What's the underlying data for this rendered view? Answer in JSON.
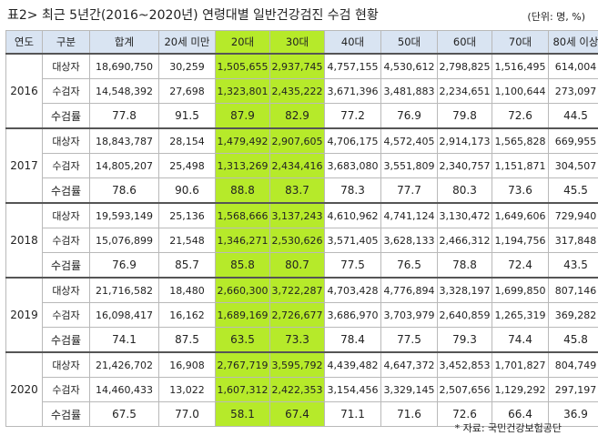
{
  "title": "표2> 최근 5년간(2016~2020년) 연령대별 일반건강검진 수검 현황",
  "unit": "(단위: 명, %)",
  "header": [
    "연도",
    "구분",
    "합계",
    "20세 미만",
    "20대",
    "30대",
    "40대",
    "50대",
    "60대",
    "70대",
    "80세 이상"
  ],
  "groups": [
    {
      "year": "2016",
      "rows": [
        {
          "label": "대상자",
          "cells": [
            "18,690,750",
            "30,259",
            "1,505,655",
            "2,937,745",
            "4,757,155",
            "4,530,612",
            "2,798,825",
            "1,516,495",
            "614,004"
          ]
        },
        {
          "label": "수검자",
          "cells": [
            "14,548,392",
            "27,698",
            "1,323,801",
            "2,435,222",
            "3,671,396",
            "3,481,883",
            "2,234,651",
            "1,100,644",
            "273,097"
          ]
        },
        {
          "label": "수검률",
          "cells": [
            "77.8",
            "91.5",
            "87.9",
            "82.9",
            "77.2",
            "76.9",
            "79.8",
            "72.6",
            "44.5"
          ]
        }
      ]
    },
    {
      "year": "2017",
      "rows": [
        {
          "label": "대상자",
          "cells": [
            "18,843,787",
            "28,154",
            "1,479,492",
            "2,907,605",
            "4,706,175",
            "4,572,405",
            "2,914,173",
            "1,565,828",
            "669,955"
          ]
        },
        {
          "label": "수검자",
          "cells": [
            "14,805,207",
            "25,498",
            "1,313,269",
            "2,434,416",
            "3,683,080",
            "3,551,809",
            "2,340,757",
            "1,151,871",
            "304,507"
          ]
        },
        {
          "label": "수검률",
          "cells": [
            "78.6",
            "90.6",
            "88.8",
            "83.7",
            "78.3",
            "77.7",
            "80.3",
            "73.6",
            "45.5"
          ]
        }
      ]
    },
    {
      "year": "2018",
      "rows": [
        {
          "label": "대상자",
          "cells": [
            "19,593,149",
            "25,136",
            "1,568,666",
            "3,137,243",
            "4,610,962",
            "4,741,124",
            "3,130,472",
            "1,649,606",
            "729,940"
          ]
        },
        {
          "label": "수검자",
          "cells": [
            "15,076,899",
            "21,548",
            "1,346,271",
            "2,530,626",
            "3,571,405",
            "3,628,133",
            "2,466,312",
            "1,194,756",
            "317,848"
          ]
        },
        {
          "label": "수검률",
          "cells": [
            "76.9",
            "85.7",
            "85.8",
            "80.7",
            "77.5",
            "76.5",
            "78.8",
            "72.4",
            "43.5"
          ]
        }
      ]
    },
    {
      "year": "2019",
      "rows": [
        {
          "label": "대상자",
          "cells": [
            "21,716,582",
            "18,480",
            "2,660,300",
            "3,722,287",
            "4,703,428",
            "4,776,894",
            "3,328,197",
            "1,699,850",
            "807,146"
          ]
        },
        {
          "label": "수검자",
          "cells": [
            "16,098,417",
            "16,162",
            "1,689,169",
            "2,726,677",
            "3,686,970",
            "3,703,979",
            "2,640,859",
            "1,265,319",
            "369,282"
          ]
        },
        {
          "label": "수검률",
          "cells": [
            "74.1",
            "87.5",
            "63.5",
            "73.3",
            "78.4",
            "77.5",
            "79.3",
            "74.4",
            "45.8"
          ]
        }
      ]
    },
    {
      "year": "2020",
      "rows": [
        {
          "label": "대상자",
          "cells": [
            "21,426,702",
            "16,908",
            "2,767,719",
            "3,595,792",
            "4,439,482",
            "4,647,372",
            "3,452,853",
            "1,701,827",
            "804,749"
          ]
        },
        {
          "label": "수검자",
          "cells": [
            "14,460,433",
            "13,022",
            "1,607,312",
            "2,422,353",
            "3,154,456",
            "3,329,145",
            "2,507,656",
            "1,129,292",
            "297,197"
          ]
        },
        {
          "label": "수검률",
          "cells": [
            "67.5",
            "77.0",
            "58.1",
            "67.4",
            "71.1",
            "71.6",
            "72.6",
            "66.4",
            "36.9"
          ]
        }
      ]
    }
  ],
  "note": "* 자료: 국민건강보험공단"
}
